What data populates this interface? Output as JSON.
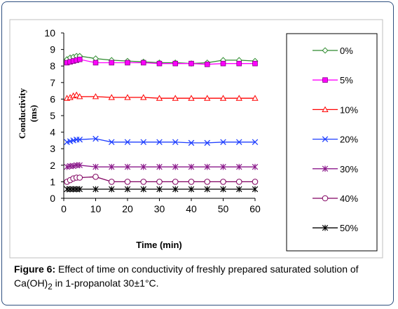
{
  "chart_data": {
    "type": "line",
    "xlabel": "Time (min)",
    "ylabel_line1": "Conductivity",
    "ylabel_line2": "(ms)",
    "xlim": [
      0,
      60
    ],
    "ylim": [
      0,
      10
    ],
    "xticks": [
      0,
      10,
      20,
      30,
      40,
      50,
      60
    ],
    "yticks": [
      0,
      1,
      2,
      3,
      4,
      5,
      6,
      7,
      8,
      9,
      10
    ],
    "grid": false,
    "legend_position": "right",
    "x": [
      1,
      2,
      3,
      4,
      5,
      10,
      15,
      20,
      25,
      30,
      35,
      40,
      45,
      50,
      55,
      60
    ],
    "series": [
      {
        "name": "0%",
        "color": "#2e8b2e",
        "marker": "diamond-open",
        "values": [
          8.4,
          8.5,
          8.55,
          8.6,
          8.6,
          8.45,
          8.35,
          8.3,
          8.25,
          8.2,
          8.2,
          8.15,
          8.2,
          8.35,
          8.35,
          8.3
        ]
      },
      {
        "name": "5%",
        "color": "#ff00ff",
        "marker": "square-filled",
        "values": [
          8.2,
          8.25,
          8.3,
          8.35,
          8.4,
          8.2,
          8.2,
          8.2,
          8.2,
          8.15,
          8.15,
          8.15,
          8.1,
          8.15,
          8.15,
          8.15
        ]
      },
      {
        "name": "10%",
        "color": "#ff0000",
        "marker": "triangle-open",
        "values": [
          6.05,
          6.1,
          6.2,
          6.25,
          6.15,
          6.15,
          6.1,
          6.1,
          6.1,
          6.05,
          6.05,
          6.05,
          6.05,
          6.05,
          6.05,
          6.05
        ]
      },
      {
        "name": "20%",
        "color": "#1f3fff",
        "marker": "x",
        "values": [
          3.4,
          3.45,
          3.5,
          3.55,
          3.55,
          3.6,
          3.4,
          3.4,
          3.4,
          3.4,
          3.4,
          3.35,
          3.35,
          3.4,
          3.4,
          3.4
        ]
      },
      {
        "name": "30%",
        "color": "#8b1a8b",
        "marker": "asterisk",
        "values": [
          1.9,
          1.95,
          1.95,
          2.0,
          2.0,
          1.9,
          1.9,
          1.9,
          1.9,
          1.9,
          1.9,
          1.9,
          1.9,
          1.9,
          1.9,
          1.9
        ]
      },
      {
        "name": "40%",
        "color": "#800060",
        "marker": "circle-open",
        "values": [
          1.0,
          1.1,
          1.2,
          1.25,
          1.25,
          1.3,
          1.0,
          1.0,
          1.0,
          1.0,
          1.0,
          1.0,
          1.0,
          1.0,
          1.0,
          1.0
        ]
      },
      {
        "name": "50%",
        "color": "#000000",
        "marker": "asterisk",
        "values": [
          0.55,
          0.55,
          0.55,
          0.55,
          0.55,
          0.55,
          0.55,
          0.55,
          0.55,
          0.55,
          0.55,
          0.55,
          0.55,
          0.55,
          0.55,
          0.55
        ]
      }
    ]
  },
  "caption": {
    "label": "Figure 6:",
    "text_part1": " Effect of time on conductivity of freshly prepared saturated solution of Ca(OH)",
    "subscript": "2",
    "text_part2": " in  1-propanolat 30±1°C."
  }
}
